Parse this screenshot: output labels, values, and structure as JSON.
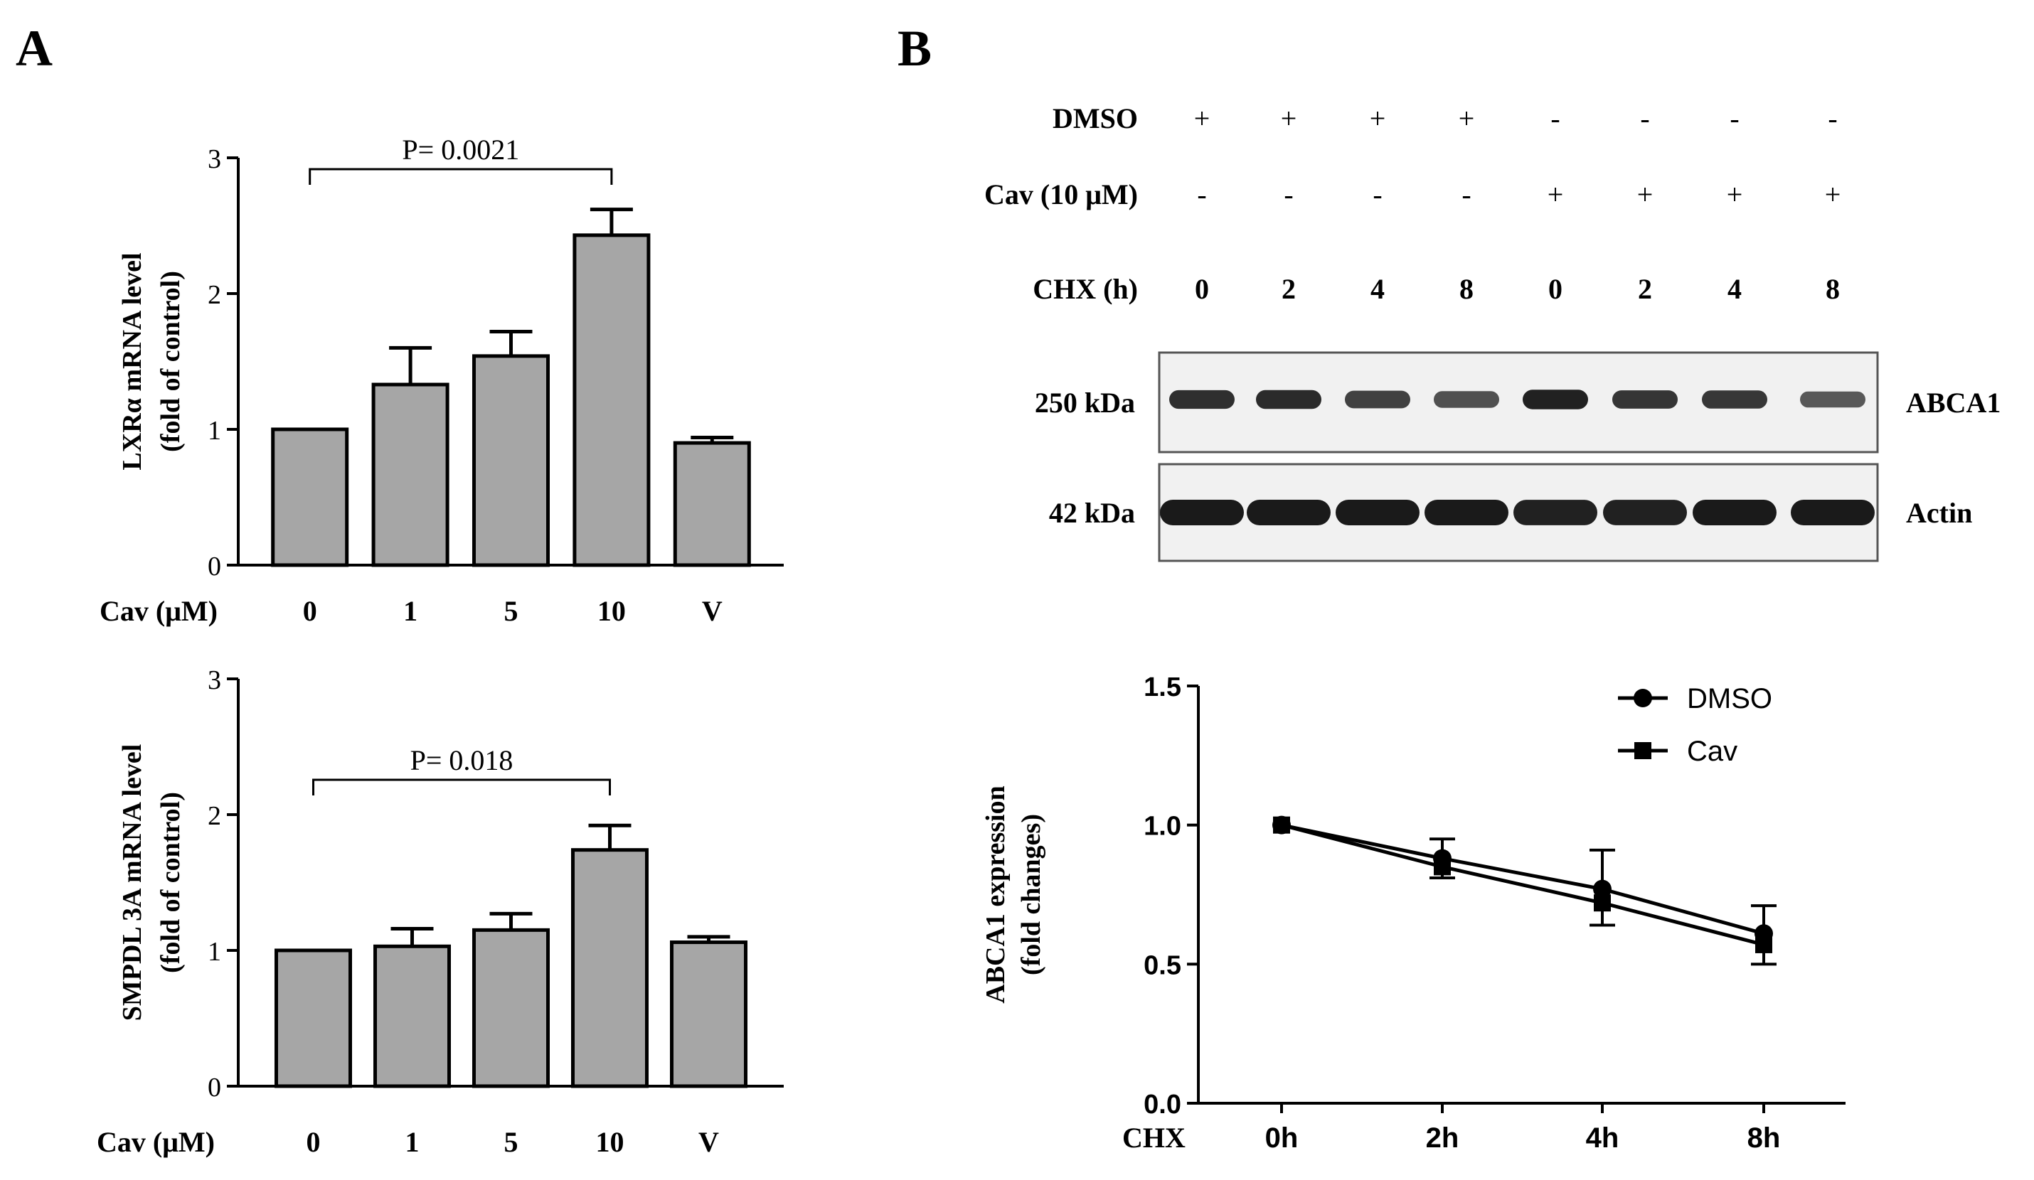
{
  "panels": {
    "a_label": "A",
    "b_label": "B"
  },
  "colors": {
    "bar_fill": "#a6a6a6",
    "ink": "#000000",
    "blot_bg": "#f1f1f1",
    "band": "#1a1a1a"
  },
  "chart_data": [
    {
      "id": "lxr",
      "type": "bar",
      "ylabel_line1": "LXRα mRNA level",
      "ylabel_line2": "(fold of control)",
      "xlabel": "Cav (μM)",
      "categories": [
        "0",
        "1",
        "5",
        "10",
        "V"
      ],
      "values": [
        1.0,
        1.33,
        1.54,
        2.43,
        0.9
      ],
      "errors": [
        0.0,
        0.27,
        0.18,
        0.19,
        0.04
      ],
      "ylim": [
        0,
        3
      ],
      "yticks": [
        "0",
        "1",
        "2",
        "3"
      ],
      "significance": {
        "label": "P= 0.0021",
        "from": 0,
        "to": 3
      }
    },
    {
      "id": "smpdl",
      "type": "bar",
      "ylabel_line1": "SMPDL 3A mRNA level",
      "ylabel_line2": "(fold of control)",
      "xlabel": "Cav (μM)",
      "categories": [
        "0",
        "1",
        "5",
        "10",
        "V"
      ],
      "values": [
        1.0,
        1.03,
        1.15,
        1.74,
        1.06
      ],
      "errors": [
        0.0,
        0.13,
        0.12,
        0.18,
        0.04
      ],
      "ylim": [
        0,
        3
      ],
      "yticks": [
        "0",
        "1",
        "2",
        "3"
      ],
      "significance": {
        "label": "P= 0.018",
        "from": 0,
        "to": 3
      }
    },
    {
      "id": "abca1",
      "type": "line",
      "ylabel_line1": "ABCA1  expression",
      "ylabel_line2": "(fold changes)",
      "xlabel": "CHX",
      "categories": [
        "0h",
        "2h",
        "4h",
        "8h"
      ],
      "ylim": [
        0,
        1.5
      ],
      "yticks": [
        "0.0",
        "0.5",
        "1.0",
        "1.5"
      ],
      "series": [
        {
          "name": "DMSO",
          "marker": "circle",
          "values": [
            1.0,
            0.88,
            0.77,
            0.61
          ],
          "errors": [
            0.0,
            0.07,
            0.14,
            0.1
          ]
        },
        {
          "name": "Cav",
          "marker": "square",
          "values": [
            1.0,
            0.85,
            0.72,
            0.57
          ],
          "errors": [
            0.0,
            0.04,
            0.08,
            0.07
          ]
        }
      ]
    }
  ],
  "blot": {
    "conditions": [
      {
        "label": "DMSO",
        "values": [
          "+",
          "+",
          "+",
          "+",
          "-",
          "-",
          "-",
          "-"
        ]
      },
      {
        "label": "Cav (10 μM)",
        "values": [
          "-",
          "-",
          "-",
          "-",
          "+",
          "+",
          "+",
          "+"
        ]
      },
      {
        "label": "CHX (h)",
        "values": [
          "0",
          "2",
          "4",
          "8",
          "0",
          "2",
          "4",
          "8"
        ]
      }
    ],
    "rows": [
      {
        "size": "250 kDa",
        "protein": "ABCA1",
        "intensities": [
          0.85,
          0.88,
          0.72,
          0.62,
          0.95,
          0.82,
          0.8,
          0.55
        ]
      },
      {
        "size": "42 kDa",
        "protein": "Actin",
        "intensities": [
          1.0,
          1.0,
          1.0,
          1.0,
          0.95,
          0.95,
          1.0,
          1.0
        ]
      }
    ]
  }
}
